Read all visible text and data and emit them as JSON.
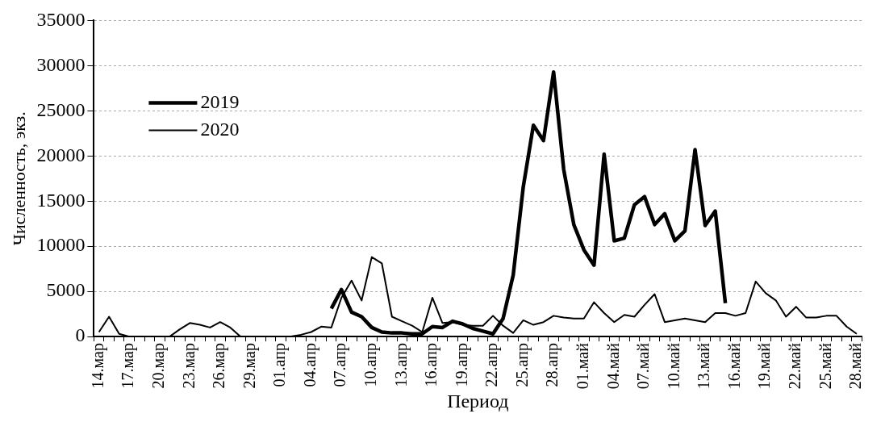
{
  "chart_data": {
    "type": "line",
    "xlabel": "Период",
    "ylabel": "Численность, экз.",
    "categories": [
      "14.мар",
      null,
      null,
      "17.мар",
      null,
      null,
      "20.мар",
      null,
      null,
      "23.мар",
      null,
      null,
      "26.мар",
      null,
      null,
      "29.мар",
      null,
      null,
      "01.апр",
      null,
      null,
      "04.апр",
      null,
      null,
      "07.апр",
      null,
      null,
      "10.апр",
      null,
      null,
      "13.апр",
      null,
      null,
      "16.апр",
      null,
      null,
      "19.апр",
      null,
      null,
      "22.апр",
      null,
      null,
      "25.апр",
      null,
      null,
      "28.апр",
      null,
      null,
      "01.май",
      null,
      null,
      "04.май",
      null,
      null,
      "07.май",
      null,
      null,
      "10.май",
      null,
      null,
      "13.май",
      null,
      null,
      "16.май",
      null,
      null,
      "19.май",
      null,
      null,
      "22.май",
      null,
      null,
      "25.май",
      null,
      null,
      "28.май"
    ],
    "series": [
      {
        "name": "2019",
        "color": "#000000",
        "values": [
          null,
          null,
          null,
          null,
          null,
          null,
          null,
          null,
          null,
          null,
          null,
          null,
          null,
          null,
          null,
          null,
          null,
          null,
          null,
          null,
          null,
          null,
          null,
          3100,
          5200,
          2700,
          2200,
          1000,
          500,
          400,
          400,
          300,
          300,
          1100,
          1000,
          1700,
          1400,
          900,
          600,
          300,
          2000,
          6800,
          16600,
          23400,
          21700,
          29300,
          18500,
          12400,
          9600,
          7900,
          20200,
          10600,
          10900,
          14600,
          15500,
          12400,
          13600,
          10600,
          11700,
          20700,
          12300,
          13900,
          3700,
          null,
          null,
          null,
          null,
          null,
          null,
          null,
          null,
          null,
          null,
          null,
          null,
          null
        ]
      },
      {
        "name": "2020",
        "color": "#000000",
        "values": [
          500,
          2200,
          300,
          0,
          0,
          0,
          0,
          0,
          800,
          1500,
          1300,
          1000,
          1600,
          1000,
          0,
          0,
          0,
          0,
          0,
          0,
          200,
          500,
          1100,
          1000,
          4300,
          6200,
          4000,
          8800,
          8100,
          2200,
          1700,
          1200,
          500,
          4300,
          1500,
          1600,
          1300,
          1200,
          1200,
          2300,
          1200,
          400,
          1800,
          1300,
          1600,
          2300,
          2100,
          2000,
          2000,
          3800,
          2600,
          1600,
          2400,
          2200,
          3500,
          4700,
          1600,
          1800,
          2000,
          1800,
          1600,
          2600,
          2600,
          2300,
          2600,
          6100,
          4800,
          4000,
          2200,
          3300,
          2100,
          2100,
          2300,
          2300,
          1100,
          300
        ]
      }
    ],
    "ylim": [
      0,
      35000
    ],
    "yticks": [
      0,
      5000,
      10000,
      15000,
      20000,
      25000,
      30000,
      35000
    ],
    "grid": "y",
    "legend": "top left",
    "marker": "none",
    "line_style": "solid"
  }
}
